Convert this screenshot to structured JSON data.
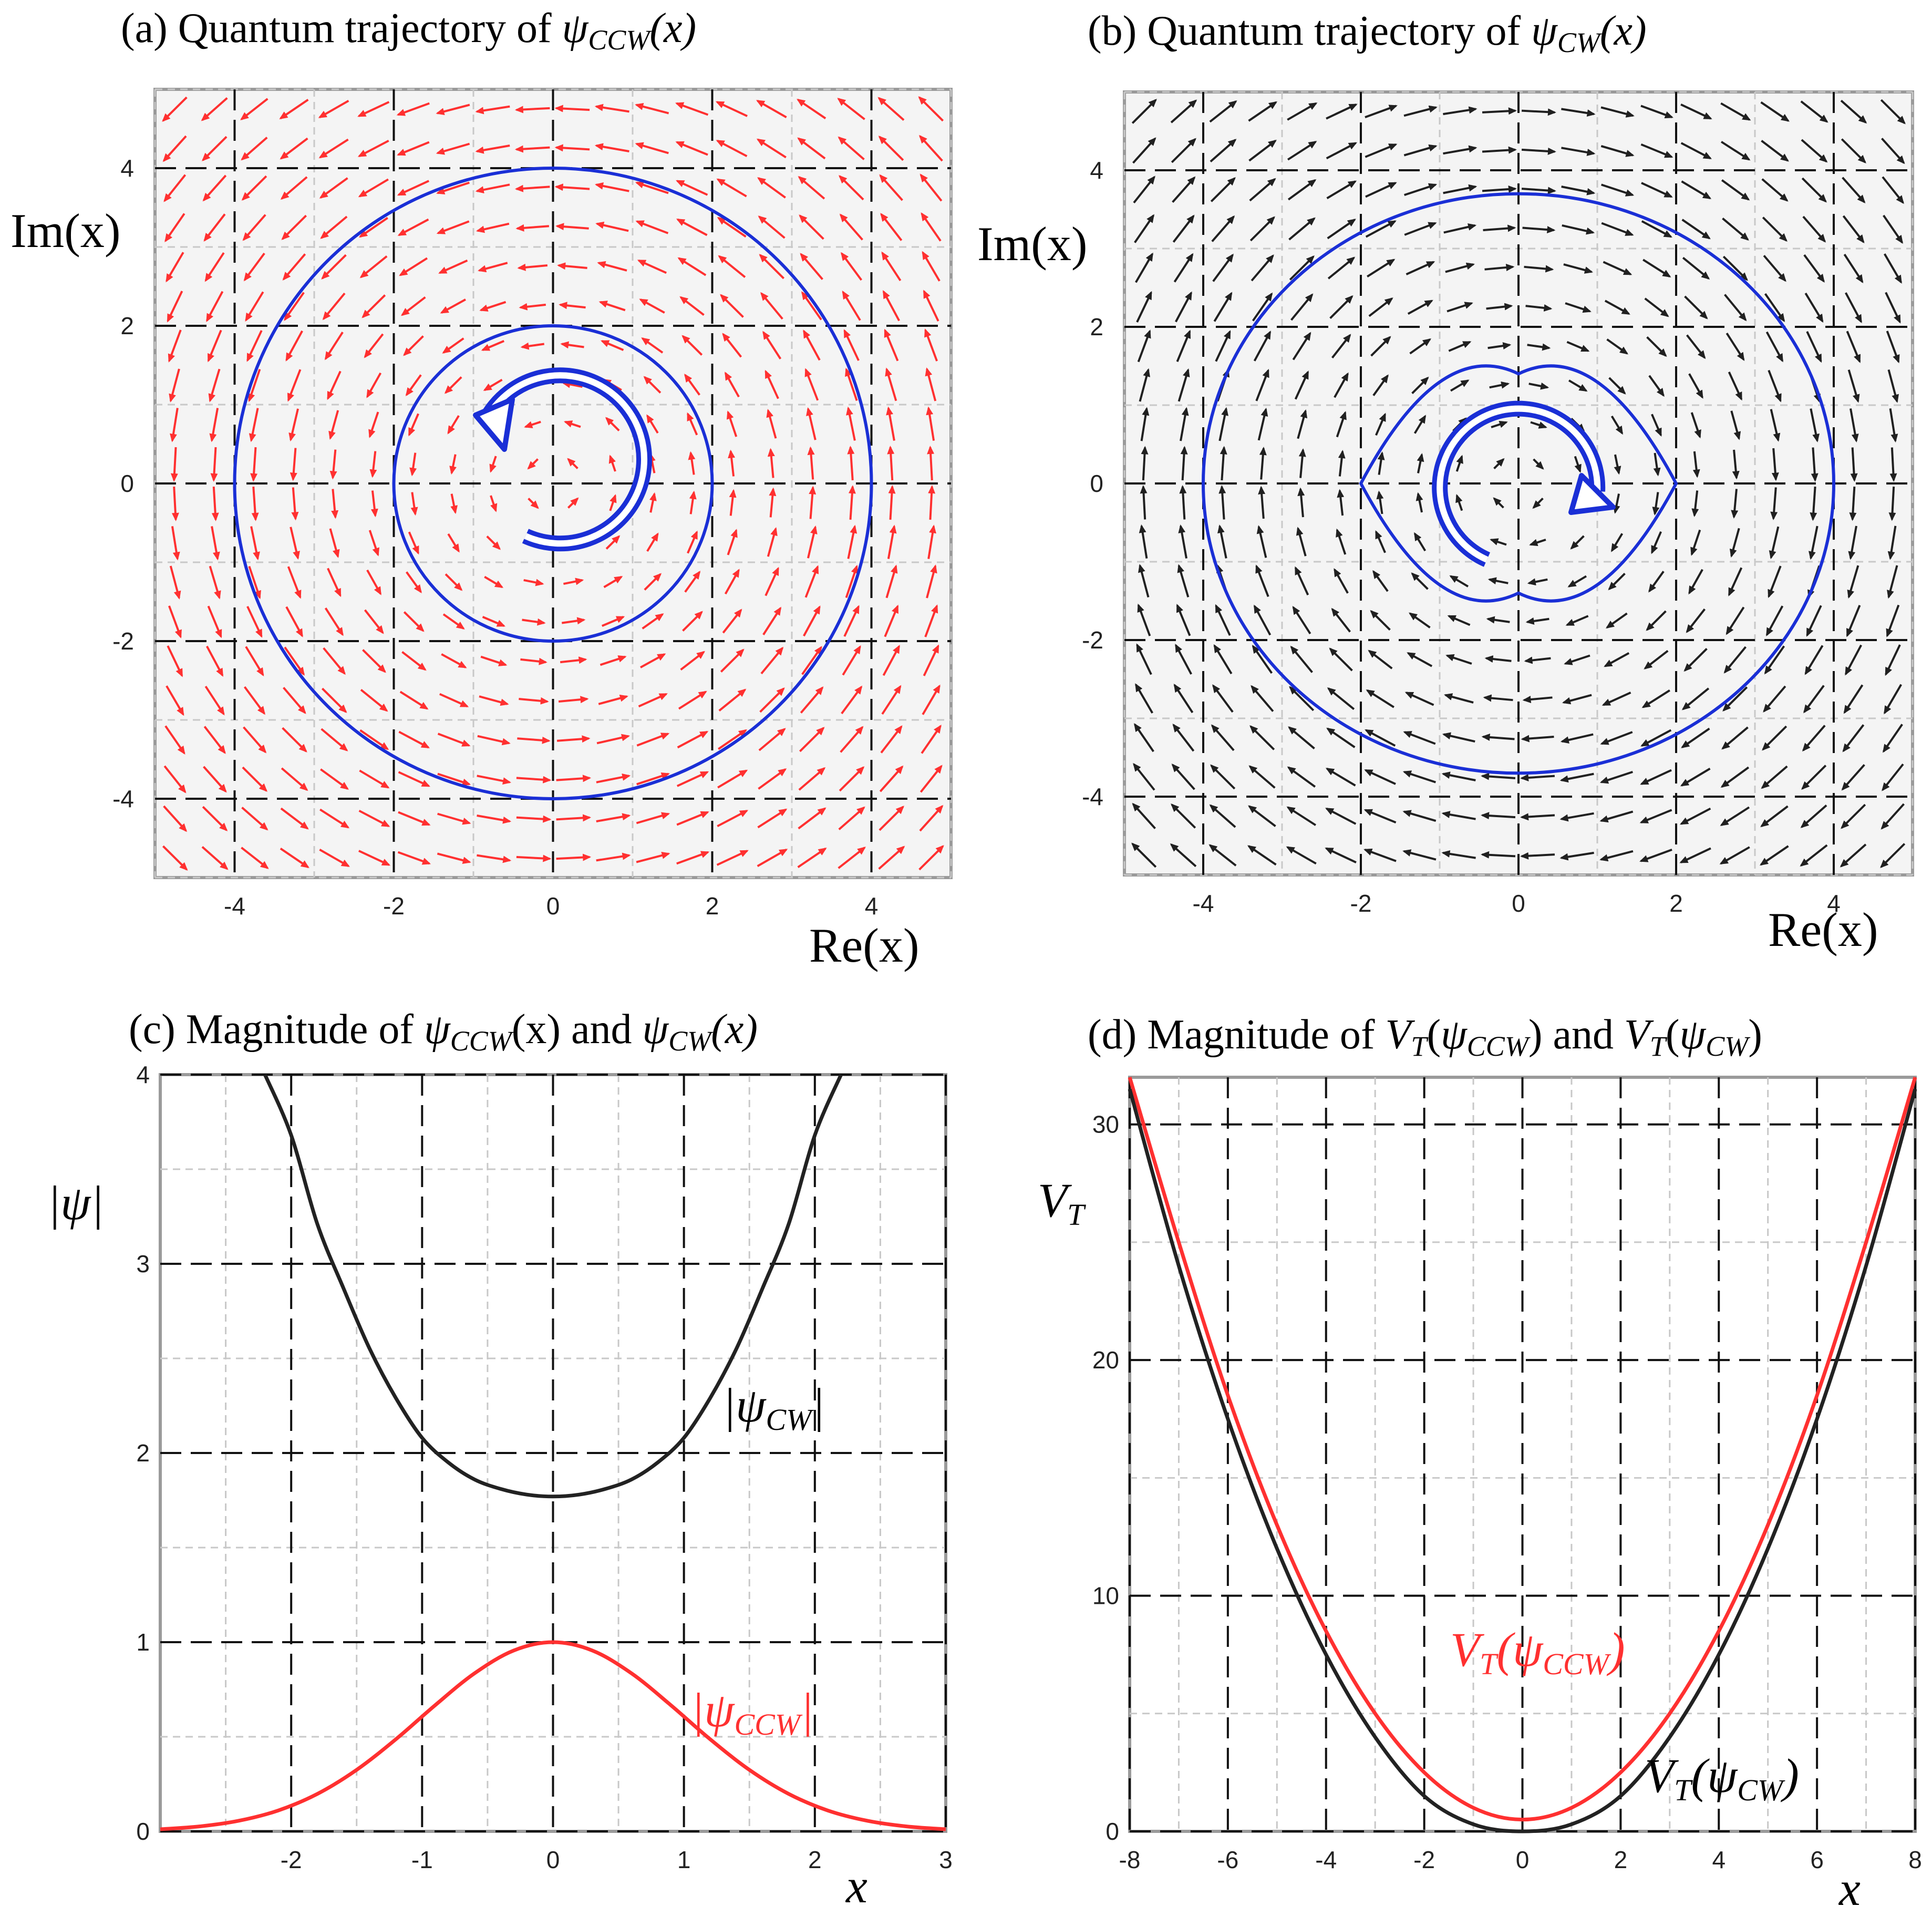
{
  "chart_data": [
    {
      "id": "a",
      "type": "vector_field",
      "title_prefix": "(a)  Quantum trajectory of ",
      "title_func": "ψ",
      "title_sub": "CCW",
      "title_arg": "(x)",
      "xlabel": "Re(x)",
      "ylabel": "Im(x)",
      "xlim": [
        -5,
        5
      ],
      "ylim": [
        -5,
        5
      ],
      "xticks": [
        -4,
        -2,
        0,
        2,
        4
      ],
      "yticks": [
        -4,
        -2,
        0,
        2,
        4
      ],
      "xtick_labels": [
        "-4",
        "-2",
        "0",
        "2",
        "4"
      ],
      "ytick_labels": [
        "-4",
        "-2",
        "0",
        "2",
        "4"
      ],
      "field": "counterclockwise",
      "arrow_color": "#ff3030",
      "trajectory_color": "#1a2fd6",
      "trajectories": [
        {
          "shape": "circle",
          "rx": 4,
          "ry": 4
        },
        {
          "shape": "circle",
          "rx": 2,
          "ry": 2
        }
      ],
      "rotation_marker": "counterclockwise"
    },
    {
      "id": "b",
      "type": "vector_field",
      "title_prefix": "(b)  Quantum trajectory of ",
      "title_func": "ψ",
      "title_sub": "CW",
      "title_arg": "(x)",
      "xlabel": "Re(x)",
      "ylabel": "Im(x)",
      "xlim": [
        -5,
        5
      ],
      "ylim": [
        -5,
        5
      ],
      "xticks": [
        -4,
        -2,
        0,
        2,
        4
      ],
      "yticks": [
        -4,
        -2,
        0,
        2,
        4
      ],
      "xtick_labels": [
        "-4",
        "-2",
        "0",
        "2",
        "4"
      ],
      "ytick_labels": [
        "-4",
        "-2",
        "0",
        "2",
        "4"
      ],
      "field": "clockwise",
      "arrow_color": "#202020",
      "trajectory_color": "#1a2fd6",
      "trajectories": [
        {
          "shape": "ellipse",
          "rx": 4,
          "ry": 3.7
        },
        {
          "shape": "lens",
          "rx": 2,
          "ry": 1.4
        }
      ],
      "rotation_marker": "clockwise"
    },
    {
      "id": "c",
      "type": "line",
      "title_prefix": "(c)  Magnitude of ",
      "title_func": "ψ",
      "title_sub1": "CCW",
      "title_mid": "(x)  and  ",
      "title_sub2": "CW",
      "title_arg": "(x)",
      "xlabel": "x",
      "ylabel": "|ψ|",
      "xlim": [
        -3,
        3
      ],
      "ylim": [
        0,
        4
      ],
      "xticks": [
        -2,
        -1,
        0,
        1,
        2,
        3
      ],
      "yticks": [
        0,
        1,
        2,
        3,
        4
      ],
      "xtick_labels": [
        "-2",
        "-1",
        "0",
        "1",
        "2",
        "3"
      ],
      "ytick_labels": [
        "0",
        "1",
        "2",
        "3",
        "4"
      ],
      "series": [
        {
          "name": "|ψCW|",
          "label_func": "ψ",
          "label_sub": "CW",
          "color": "#222222",
          "x": [
            -2.2,
            -2.0,
            -1.8,
            -1.6,
            -1.4,
            -1.2,
            -1.0,
            -0.8,
            -0.6,
            -0.4,
            -0.2,
            0.0,
            0.2,
            0.4,
            0.6,
            0.8,
            1.0,
            1.2,
            1.4,
            1.6,
            1.8,
            2.0,
            2.2
          ],
          "values": [
            4.0,
            3.68,
            3.21,
            2.87,
            2.55,
            2.29,
            2.08,
            1.95,
            1.86,
            1.81,
            1.78,
            1.77,
            1.78,
            1.81,
            1.86,
            1.95,
            2.08,
            2.29,
            2.55,
            2.87,
            3.21,
            3.68,
            4.0
          ]
        },
        {
          "name": "|ψCCW|",
          "label_func": "ψ",
          "label_sub": "CCW",
          "color": "#ff3030",
          "x": [
            -3.0,
            -2.7,
            -2.4,
            -2.1,
            -1.8,
            -1.5,
            -1.2,
            -0.9,
            -0.6,
            -0.3,
            0.0,
            0.3,
            0.6,
            0.9,
            1.2,
            1.5,
            1.8,
            2.1,
            2.4,
            2.7,
            3.0
          ],
          "values": [
            0.011,
            0.026,
            0.056,
            0.11,
            0.198,
            0.325,
            0.487,
            0.667,
            0.835,
            0.956,
            1.0,
            0.956,
            0.835,
            0.667,
            0.487,
            0.325,
            0.198,
            0.11,
            0.056,
            0.026,
            0.011
          ]
        }
      ]
    },
    {
      "id": "d",
      "type": "line",
      "title_prefix": "(d) Magnitude of ",
      "title_V": "V",
      "title_T": "T",
      "title_func": "ψ",
      "title_sub1": "CCW",
      "title_and": "  and  ",
      "title_sub2": "CW",
      "xlabel": "x",
      "ylabel": "VT",
      "xlim": [
        -8,
        8
      ],
      "ylim": [
        0,
        32
      ],
      "xticks": [
        -8,
        -6,
        -4,
        -2,
        0,
        2,
        4,
        6,
        8
      ],
      "yticks": [
        0,
        10,
        20,
        30
      ],
      "xtick_labels": [
        "-8",
        "-6",
        "-4",
        "-2",
        "0",
        "2",
        "4",
        "6",
        "8"
      ],
      "ytick_labels": [
        "0",
        "10",
        "20",
        "30"
      ],
      "series": [
        {
          "name": "VT(ψCCW)",
          "label_func": "ψ",
          "label_sub": "CCW",
          "color": "#ff3030",
          "x": [
            -8,
            -7,
            -6,
            -5,
            -4,
            -3,
            -2,
            -1,
            0,
            1,
            2,
            3,
            4,
            5,
            6,
            7,
            8
          ],
          "values": [
            32.5,
            25.0,
            18.5,
            13.0,
            8.5,
            5.0,
            2.5,
            1.0,
            0.5,
            1.0,
            2.5,
            5.0,
            8.5,
            13.0,
            18.5,
            25.0,
            32.5
          ]
        },
        {
          "name": "VT(ψCW)",
          "label_func": "ψ",
          "label_sub": "CW",
          "color": "#222222",
          "x": [
            -8,
            -7,
            -6,
            -5,
            -4,
            -3,
            -2,
            -1,
            0,
            1,
            2,
            3,
            4,
            5,
            6,
            7,
            8
          ],
          "values": [
            31.5,
            24.0,
            17.5,
            12.0,
            7.5,
            4.0,
            1.5,
            0.3,
            0.0,
            0.3,
            1.5,
            4.0,
            7.5,
            12.0,
            17.5,
            24.0,
            31.5
          ]
        }
      ]
    }
  ]
}
